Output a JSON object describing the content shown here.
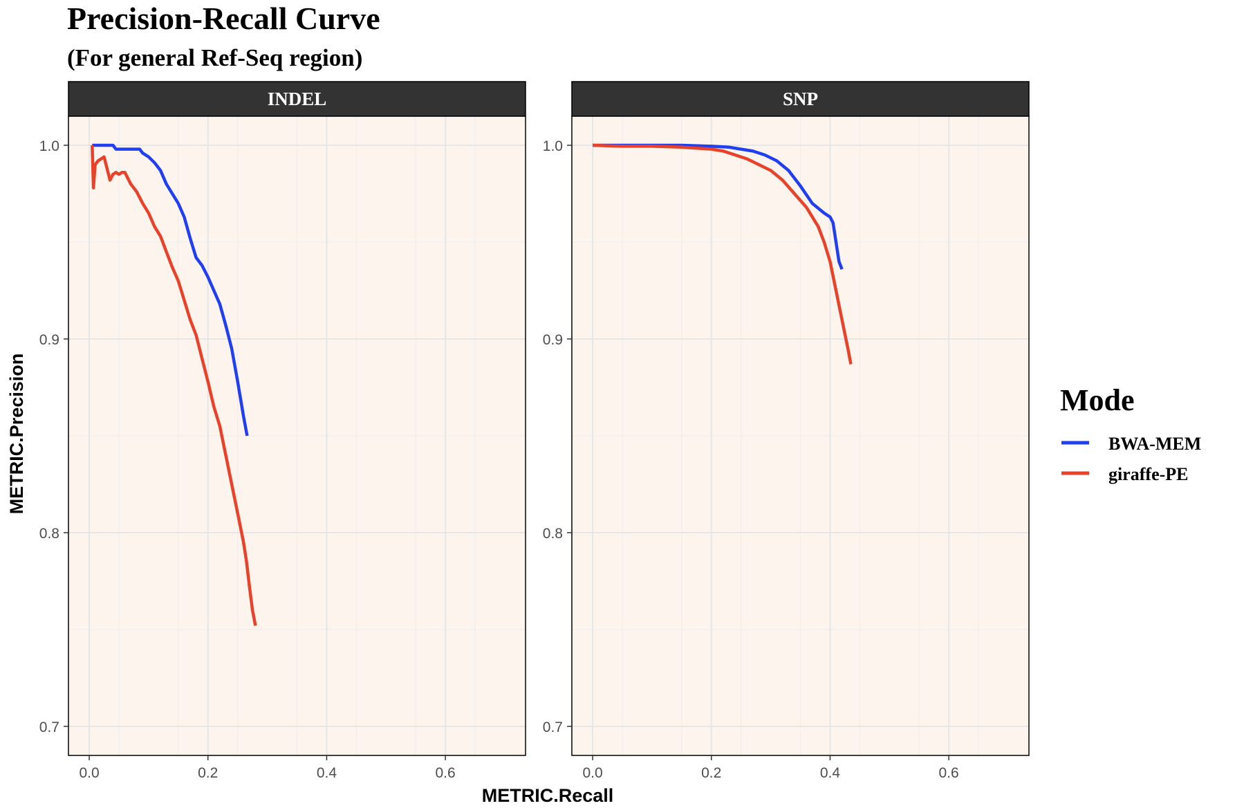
{
  "chart_data": {
    "type": "line",
    "title": "Precision-Recall Curve",
    "subtitle": "(For general Ref-Seq region)",
    "xlabel": "METRIC.Recall",
    "ylabel": "METRIC.Precision",
    "xlim": [
      -0.035,
      0.735
    ],
    "ylim": [
      0.685,
      1.015
    ],
    "x_ticks": [
      0.0,
      0.2,
      0.4,
      0.6
    ],
    "x_tick_labels": [
      "0.0",
      "0.2",
      "0.4",
      "0.6"
    ],
    "y_ticks": [
      0.7,
      0.8,
      0.9,
      1.0
    ],
    "y_tick_labels": [
      "0.7",
      "0.8",
      "0.9",
      "1.0"
    ],
    "grid": true,
    "panel_background": "#fdf4ee",
    "strip_background": "#333333",
    "legend": {
      "title": "Mode",
      "position": "right",
      "entries": [
        {
          "name": "BWA-MEM",
          "color": "#1f3ff0"
        },
        {
          "name": "giraffe-PE",
          "color": "#e8432a"
        }
      ]
    },
    "panels": [
      {
        "name": "INDEL",
        "series": [
          {
            "name": "BWA-MEM",
            "color": "#1f3ff0",
            "x": [
              0.005,
              0.02,
              0.04,
              0.045,
              0.05,
              0.06,
              0.08,
              0.085,
              0.09,
              0.1,
              0.11,
              0.12,
              0.13,
              0.14,
              0.15,
              0.16,
              0.17,
              0.18,
              0.19,
              0.2,
              0.21,
              0.22,
              0.23,
              0.24,
              0.25,
              0.26,
              0.263,
              0.266
            ],
            "y": [
              1.0,
              1.0,
              1.0,
              0.998,
              0.998,
              0.998,
              0.998,
              0.998,
              0.996,
              0.994,
              0.991,
              0.987,
              0.98,
              0.975,
              0.97,
              0.963,
              0.952,
              0.942,
              0.938,
              0.932,
              0.925,
              0.918,
              0.907,
              0.895,
              0.878,
              0.86,
              0.855,
              0.85
            ]
          },
          {
            "name": "giraffe-PE",
            "color": "#e8432a",
            "x": [
              0.005,
              0.007,
              0.01,
              0.015,
              0.02,
              0.025,
              0.03,
              0.035,
              0.04,
              0.045,
              0.05,
              0.055,
              0.06,
              0.065,
              0.07,
              0.075,
              0.08,
              0.09,
              0.1,
              0.11,
              0.12,
              0.13,
              0.14,
              0.15,
              0.16,
              0.17,
              0.18,
              0.19,
              0.2,
              0.21,
              0.22,
              0.23,
              0.24,
              0.25,
              0.26,
              0.265,
              0.27,
              0.275,
              0.28
            ],
            "y": [
              1.0,
              0.978,
              0.99,
              0.992,
              0.993,
              0.994,
              0.988,
              0.982,
              0.985,
              0.986,
              0.985,
              0.986,
              0.986,
              0.983,
              0.98,
              0.978,
              0.976,
              0.97,
              0.965,
              0.958,
              0.953,
              0.945,
              0.937,
              0.93,
              0.92,
              0.91,
              0.902,
              0.89,
              0.878,
              0.865,
              0.855,
              0.84,
              0.825,
              0.81,
              0.795,
              0.785,
              0.772,
              0.76,
              0.752
            ]
          }
        ]
      },
      {
        "name": "SNP",
        "series": [
          {
            "name": "BWA-MEM",
            "color": "#1f3ff0",
            "x": [
              0.0,
              0.05,
              0.1,
              0.15,
              0.2,
              0.23,
              0.25,
              0.27,
              0.29,
              0.31,
              0.33,
              0.35,
              0.37,
              0.39,
              0.4,
              0.405,
              0.41,
              0.415,
              0.42
            ],
            "y": [
              1.0,
              1.0,
              1.0,
              1.0,
              0.9995,
              0.999,
              0.998,
              0.997,
              0.995,
              0.992,
              0.987,
              0.979,
              0.97,
              0.965,
              0.963,
              0.96,
              0.95,
              0.94,
              0.936
            ]
          },
          {
            "name": "giraffe-PE",
            "color": "#e8432a",
            "x": [
              0.0,
              0.05,
              0.1,
              0.15,
              0.2,
              0.22,
              0.24,
              0.26,
              0.28,
              0.3,
              0.32,
              0.34,
              0.36,
              0.38,
              0.39,
              0.4,
              0.41,
              0.42,
              0.43,
              0.435
            ],
            "y": [
              1.0,
              0.9995,
              0.9995,
              0.999,
              0.998,
              0.997,
              0.995,
              0.993,
              0.99,
              0.987,
              0.982,
              0.975,
              0.968,
              0.958,
              0.95,
              0.94,
              0.925,
              0.91,
              0.895,
              0.887
            ]
          }
        ]
      }
    ]
  }
}
